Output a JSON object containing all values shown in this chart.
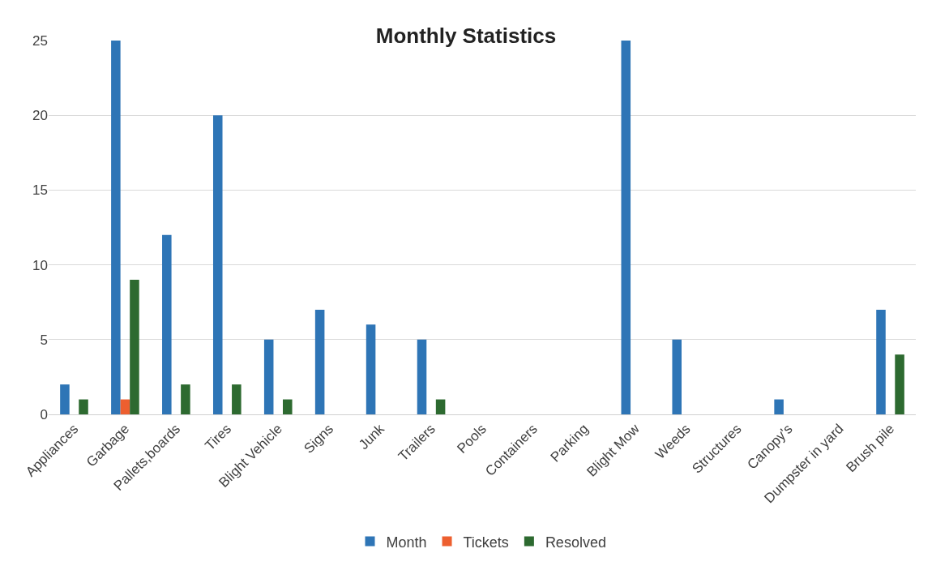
{
  "chart_data": {
    "type": "bar",
    "title": "Monthly Statistics",
    "categories": [
      "Appliances",
      "Garbage",
      "Pallets,boards",
      "Tires",
      "Blight Vehicle",
      "Signs",
      "Junk",
      "Trailers",
      "Pools",
      "Containers",
      "Parking",
      "Blight Mow",
      "Weeds",
      "Structures",
      "Canopy's",
      "Dumpster in yard",
      "Brush pile"
    ],
    "series": [
      {
        "name": "Month",
        "color": "#2e75b6",
        "values": [
          2,
          25,
          12,
          20,
          5,
          7,
          6,
          5,
          0,
          0,
          0,
          25,
          5,
          0,
          1,
          0,
          7
        ]
      },
      {
        "name": "Tickets",
        "color": "#ed5f2f",
        "values": [
          0,
          1,
          0,
          0,
          0,
          0,
          0,
          0,
          0,
          0,
          0,
          0,
          0,
          0,
          0,
          0,
          0
        ]
      },
      {
        "name": "Resolved",
        "color": "#2d6a30",
        "values": [
          1,
          9,
          2,
          2,
          1,
          0,
          0,
          1,
          0,
          0,
          0,
          0,
          0,
          0,
          0,
          0,
          4
        ]
      }
    ],
    "ylim": [
      0,
      25
    ],
    "yticks": [
      0,
      5,
      10,
      15,
      20,
      25
    ],
    "grid": "y",
    "legend": "bottom"
  }
}
